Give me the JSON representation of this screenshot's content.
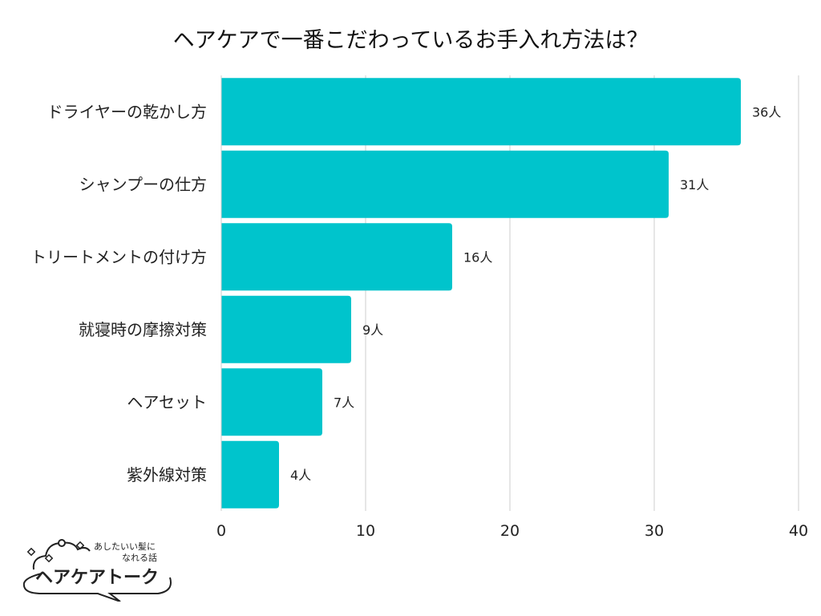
{
  "chart_data": {
    "type": "bar",
    "orientation": "horizontal",
    "title": "ヘアケアで一番こだわっているお手入れ方法は？",
    "categories": [
      "ドライヤーの乾かし方",
      "シャンプーの仕方",
      "トリートメントの付け方",
      "就寝時の摩擦対策",
      "ヘアセット",
      "紫外線対策"
    ],
    "values": [
      36,
      31,
      16,
      9,
      7,
      4
    ],
    "value_suffix": "人",
    "xlim": [
      0,
      40
    ],
    "xticks": [
      0,
      10,
      20,
      30,
      40
    ],
    "grid": true,
    "bar_color": "#00c4cc"
  },
  "logo": {
    "tagline_1": "あしたいい髪に",
    "tagline_2": "なれる話",
    "name": "ヘアケアトーク"
  }
}
